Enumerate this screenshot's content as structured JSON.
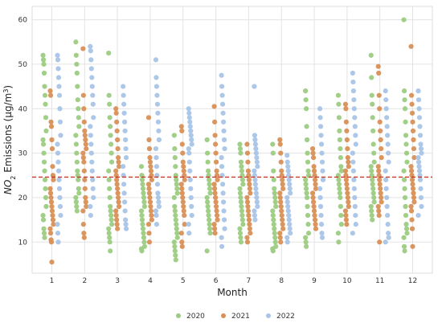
{
  "chart_data": {
    "type": "scatter",
    "title": "",
    "xlabel": "Month",
    "ylabel_main": "NO",
    "ylabel_sub": "2",
    "ylabel_rest": " Emissions (μg/m",
    "ylabel_sup": "3",
    "ylabel_end": ")",
    "xlim": [
      0.4,
      12.6
    ],
    "ylim": [
      3,
      63
    ],
    "xticks": [
      "1",
      "2",
      "3",
      "4",
      "5",
      "6",
      "7",
      "8",
      "9",
      "10",
      "11",
      "12"
    ],
    "yticks": [
      "10",
      "20",
      "30",
      "40",
      "50",
      "60"
    ],
    "grid": true,
    "reference_line": {
      "y": 24.6,
      "color": "#c0392b",
      "style": "dashed"
    },
    "legend_position": "bottom-center",
    "series": [
      {
        "name": "2020",
        "color": "#9ccc82",
        "offset": -0.22,
        "values": [
          [
            52,
            51,
            50,
            48,
            45,
            43,
            41,
            38,
            35,
            33,
            32,
            30,
            28,
            26,
            24,
            22,
            20,
            18,
            16,
            15,
            13,
            12,
            11
          ],
          [
            55,
            52,
            50,
            48,
            45,
            42,
            40,
            38,
            36,
            34,
            32,
            30,
            28,
            26,
            25,
            24,
            22,
            21,
            20,
            19,
            18,
            17
          ],
          [
            52.5,
            43,
            41,
            38,
            36,
            34,
            32,
            30,
            28,
            26,
            24,
            22,
            20,
            18,
            17,
            16,
            15,
            14,
            13,
            12,
            11,
            10,
            8
          ],
          [
            27,
            25,
            24,
            23,
            22,
            21,
            20,
            19,
            18,
            17,
            16,
            15,
            14,
            13,
            12,
            11,
            10,
            9,
            8.5,
            8
          ],
          [
            34,
            31,
            29,
            27,
            25,
            24,
            23,
            22,
            21,
            20,
            18,
            17,
            16,
            15,
            14,
            13,
            12,
            11,
            10,
            9,
            8,
            7,
            6
          ],
          [
            33,
            30,
            28,
            26,
            25,
            24,
            23,
            22,
            21,
            20,
            19,
            18,
            17,
            16,
            15,
            14,
            13,
            12,
            8
          ],
          [
            32,
            31,
            30,
            28,
            27,
            26,
            25,
            24,
            23,
            22,
            21,
            20,
            19,
            18,
            17,
            16,
            15,
            14,
            13,
            12,
            11,
            10
          ],
          [
            32,
            30,
            26,
            24,
            22,
            21,
            20,
            19,
            18,
            17,
            16,
            15,
            14,
            13,
            12,
            11,
            10,
            9,
            8.5,
            8
          ],
          [
            44,
            42,
            40,
            36,
            33,
            30,
            28,
            26,
            25,
            24,
            23,
            22,
            21,
            20,
            18,
            16,
            14,
            12,
            11,
            10,
            9
          ],
          [
            43,
            41,
            38,
            35,
            33,
            31,
            29,
            27,
            26,
            25,
            24,
            23,
            22,
            21,
            20,
            18,
            16,
            14,
            12,
            10
          ],
          [
            52,
            47,
            43,
            41,
            38,
            35,
            32,
            30,
            28,
            27,
            26,
            25,
            24,
            23,
            22,
            21,
            20,
            19,
            18,
            17,
            16,
            15
          ],
          [
            60,
            44,
            42,
            40,
            37,
            34,
            32,
            30,
            28,
            26,
            24,
            22,
            20,
            18,
            16,
            14,
            13,
            12,
            11,
            9,
            8
          ]
        ]
      },
      {
        "name": "2021",
        "color": "#d98f55",
        "offset": 0,
        "values": [
          [
            44,
            43,
            37,
            36,
            33,
            31,
            27,
            25,
            24,
            22,
            21,
            20,
            19,
            18,
            17,
            16,
            15,
            14,
            13,
            12,
            10.5,
            10,
            5.5
          ],
          [
            53.5,
            43,
            40,
            37,
            35,
            34,
            33,
            32,
            31,
            30,
            29,
            28,
            26,
            24,
            22,
            20,
            19,
            18,
            17,
            14,
            12,
            11
          ],
          [
            40,
            39,
            37,
            35,
            33,
            31,
            29,
            28,
            27,
            26,
            25,
            24,
            23,
            22,
            21,
            20,
            19,
            18,
            17,
            16,
            15,
            14,
            13
          ],
          [
            38,
            33,
            31,
            29,
            28,
            27,
            26,
            25,
            24,
            23,
            22,
            21,
            20,
            19,
            18,
            17,
            16,
            15,
            14,
            12,
            10
          ],
          [
            36,
            35,
            32,
            30,
            28,
            27,
            26,
            25,
            24,
            23,
            22,
            21,
            20,
            19,
            18,
            17,
            16,
            14,
            12,
            10,
            9
          ],
          [
            40.5,
            37,
            34,
            32,
            30,
            28,
            26,
            25,
            24,
            23,
            22,
            21,
            20,
            19,
            18,
            17,
            16,
            15,
            14,
            13,
            12
          ],
          [
            32,
            30,
            28,
            26,
            25,
            24,
            23,
            22,
            21,
            20,
            19,
            18,
            17,
            16,
            15,
            14,
            13,
            12,
            11,
            10
          ],
          [
            33,
            32,
            30,
            28,
            26,
            25,
            24,
            23,
            22,
            21,
            20,
            19,
            18,
            17,
            16,
            15,
            14,
            13,
            12,
            11,
            10
          ],
          [
            31,
            30,
            29,
            27,
            26,
            25,
            24,
            23,
            22,
            21,
            20,
            19,
            18,
            17,
            16,
            15,
            14,
            13
          ],
          [
            41,
            40,
            37,
            35,
            33,
            31,
            29,
            28,
            27,
            26,
            25,
            24,
            23,
            22,
            21,
            20,
            19,
            18,
            17,
            16,
            15,
            14
          ],
          [
            49.5,
            48,
            43,
            40,
            37,
            35,
            33,
            31,
            29,
            27,
            26,
            25,
            24,
            23,
            22,
            21,
            20,
            19,
            18,
            17,
            16,
            10
          ],
          [
            54,
            43,
            41,
            39,
            37,
            35,
            33,
            31,
            29,
            27,
            26,
            25,
            24,
            23,
            22,
            21,
            20,
            19,
            18,
            17,
            15,
            13,
            9
          ]
        ]
      },
      {
        "name": "2022",
        "color": "#a9c4e8",
        "offset": 0.22,
        "values": [
          [
            52,
            51,
            49,
            47,
            45,
            43,
            40,
            37,
            34,
            32,
            30,
            28,
            26,
            24,
            22,
            20,
            18,
            16,
            14,
            12,
            10
          ],
          [
            54,
            53,
            51,
            49,
            47,
            45,
            43,
            41,
            38,
            36,
            34,
            32,
            30,
            28,
            26,
            24,
            22,
            20,
            18,
            16
          ],
          [
            45,
            43,
            41,
            39,
            37,
            35,
            33,
            31,
            29,
            27,
            25,
            23,
            21,
            19,
            17,
            15,
            14,
            13
          ],
          [
            51,
            47,
            45,
            43,
            41,
            39,
            37,
            35,
            33,
            31,
            29,
            27,
            25,
            23,
            21,
            20,
            19,
            18,
            17,
            16,
            14
          ],
          [
            40,
            39,
            38,
            37,
            36,
            35,
            34,
            33,
            32,
            31,
            30,
            28,
            26,
            24,
            22,
            20,
            18,
            16,
            14,
            12
          ],
          [
            47.5,
            45,
            43,
            41,
            39,
            37,
            35,
            33,
            31,
            29,
            27,
            25,
            23,
            21,
            19,
            17,
            15,
            13,
            11,
            9
          ],
          [
            45,
            34,
            33,
            32,
            31,
            30,
            29,
            28,
            27,
            26,
            25,
            24,
            23,
            22,
            21,
            20,
            19,
            18,
            17,
            16,
            15
          ],
          [
            29.5,
            28,
            27,
            26,
            25,
            24,
            23,
            22,
            21,
            20,
            19,
            18,
            17,
            16,
            15,
            14,
            13,
            12,
            11,
            10
          ],
          [
            40,
            38,
            36,
            34,
            32,
            30,
            28,
            26,
            24,
            22,
            20,
            18,
            16,
            14,
            12,
            11
          ],
          [
            48,
            46,
            44,
            42,
            40,
            38,
            36,
            34,
            32,
            30,
            28,
            26,
            24,
            22,
            20,
            18,
            16,
            14,
            12
          ],
          [
            44,
            42,
            40,
            38,
            36,
            34,
            32,
            30,
            28,
            26,
            24,
            22,
            20,
            18,
            16,
            14,
            12,
            11,
            10
          ],
          [
            44,
            42,
            40,
            38,
            36,
            34,
            32,
            31,
            30,
            29,
            28,
            27,
            26,
            25,
            24,
            22,
            20,
            18,
            16
          ]
        ]
      }
    ]
  }
}
